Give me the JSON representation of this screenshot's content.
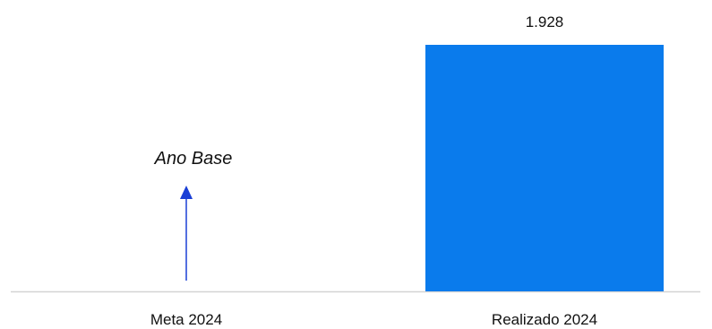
{
  "chart_data": {
    "type": "bar",
    "categories": [
      "Meta 2024",
      "Realizado 2024"
    ],
    "values": [
      null,
      1928
    ],
    "value_labels": [
      "",
      "1.928"
    ],
    "ylim": [
      0,
      2000
    ],
    "grid": false,
    "colors": {
      "bar": "#0a7bec",
      "axis": "#d4d4d4",
      "arrow": "#1a3fd6"
    },
    "annotation": {
      "text": "Ano Base",
      "category_index": 0,
      "icon": "arrow-up-icon"
    }
  }
}
